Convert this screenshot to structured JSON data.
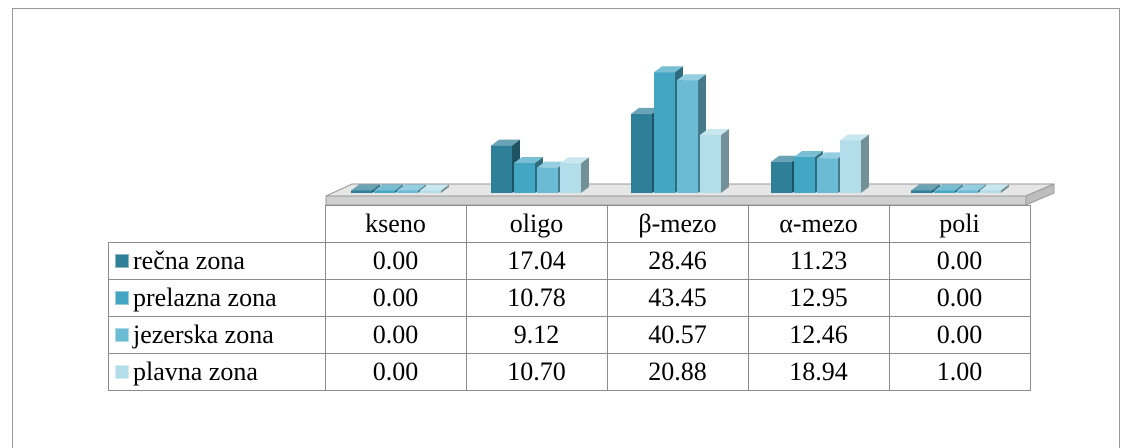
{
  "chart_data": {
    "type": "bar",
    "categories": [
      "kseno",
      "oligo",
      "β-mezo",
      "α-mezo",
      "poli"
    ],
    "series": [
      {
        "name": "rečna zona",
        "color": "#2e7f98",
        "values": [
          0.0,
          17.04,
          28.46,
          11.23,
          0.0
        ]
      },
      {
        "name": "prelazna zona",
        "color": "#43a6c2",
        "values": [
          0.0,
          10.78,
          43.45,
          12.95,
          0.0
        ]
      },
      {
        "name": "jezerska zona",
        "color": "#6cbbd4",
        "values": [
          0.0,
          9.12,
          40.57,
          12.46,
          0.0
        ]
      },
      {
        "name": "plavna zona",
        "color": "#b3dde8",
        "values": [
          0.0,
          10.7,
          20.88,
          18.94,
          1.0
        ]
      }
    ],
    "value_labels": [
      [
        "0.00",
        "17.04",
        "28.46",
        "11.23",
        "0.00"
      ],
      [
        "0.00",
        "10.78",
        "43.45",
        "12.95",
        "0.00"
      ],
      [
        "0.00",
        "9.12",
        "40.57",
        "12.46",
        "0.00"
      ],
      [
        "0.00",
        "10.70",
        "20.88",
        "18.94",
        "1.00"
      ]
    ],
    "style": "3d clustered column with data table",
    "grid": false,
    "legend": "data table left"
  }
}
